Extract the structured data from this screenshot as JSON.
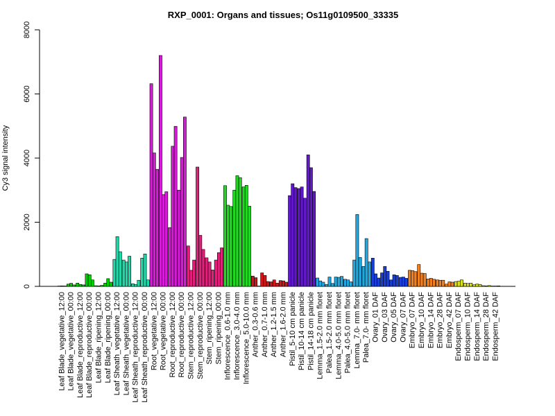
{
  "chart_data": {
    "type": "bar",
    "title": "RXP_0001: Organs and tissues; Os11g0109500_33335",
    "xlabel": "",
    "ylabel": "Cy3 signal intensity",
    "ylim": [
      0,
      8000
    ],
    "yticks": [
      0,
      2000,
      4000,
      6000,
      8000
    ],
    "groups": [
      {
        "label": "Leaf Blade_vegetative_12:00",
        "color": "#228B22",
        "values": [
          10,
          15,
          12
        ]
      },
      {
        "label": "Leaf Blade_vegetative_00:00",
        "color": "#00D000",
        "values": [
          70,
          95,
          45
        ]
      },
      {
        "label": "Leaf Blade_reproductive_12:00",
        "color": "#00D000",
        "values": [
          100,
          60,
          45
        ]
      },
      {
        "label": "Leaf Blade_reproductive_00:00",
        "color": "#00D000",
        "values": [
          390,
          360,
          200
        ]
      },
      {
        "label": "Leaf Blade_ripening_12:00",
        "color": "#00D000",
        "values": [
          20,
          15,
          30
        ]
      },
      {
        "label": "Leaf Blade_ripening_00:00",
        "color": "#00D000",
        "values": [
          100,
          240,
          130
        ]
      },
      {
        "label": "Leaf Sheath_vegetative_12:00",
        "color": "#20D8A8",
        "values": [
          840,
          1550,
          1080
        ]
      },
      {
        "label": "Leaf Sheath_vegetative_00:00",
        "color": "#20D8A8",
        "values": [
          820,
          760,
          940
        ]
      },
      {
        "label": "Leaf Sheath_reproductive_12:00",
        "color": "#20D8A8",
        "values": [
          80,
          60,
          190
        ]
      },
      {
        "label": "Leaf Sheath_reproductive_00:00",
        "color": "#20D8A8",
        "values": [
          880,
          1010,
          200
        ]
      },
      {
        "label": "Root_vegetative_12:00",
        "color": "#D81BD8",
        "values": [
          6320,
          4160,
          3650
        ]
      },
      {
        "label": "Root_vegetative_00:00",
        "color": "#D81BD8",
        "values": [
          7200,
          2860,
          2950
        ]
      },
      {
        "label": "Root_reproductive_12:00",
        "color": "#D81BD8",
        "values": [
          1830,
          4370,
          4990
        ]
      },
      {
        "label": "Root_reproductive_00:00",
        "color": "#D81BD8",
        "values": [
          3000,
          4020,
          5280
        ]
      },
      {
        "label": "Stem_reproductive_12:00",
        "color": "#E0207A",
        "values": [
          1260,
          500,
          820
        ]
      },
      {
        "label": "Stem_reproductive_00:00",
        "color": "#E0207A",
        "values": [
          3720,
          1590,
          1150
        ]
      },
      {
        "label": "Stem_ripening_12:00",
        "color": "#E0207A",
        "values": [
          890,
          760,
          510
        ]
      },
      {
        "label": "Stem_ripening_00:00",
        "color": "#E0207A",
        "values": [
          820,
          1050,
          1200
        ]
      },
      {
        "label": "Inflorescence_0.6-1.0 mm",
        "color": "#22D822",
        "values": [
          3140,
          2530,
          2490
        ]
      },
      {
        "label": "Inflorescence_3.0-4.0 mm",
        "color": "#22D822",
        "values": [
          3000,
          3450,
          3390
        ]
      },
      {
        "label": "Inflorescence_5.0-10.0 mm",
        "color": "#22D822",
        "values": [
          3100,
          3150,
          2500
        ]
      },
      {
        "label": "Anther_0.3-0.6 mm",
        "color": "#D01818",
        "values": [
          320,
          270,
          10
        ]
      },
      {
        "label": "Anther_0.7-1.0 mm",
        "color": "#D01818",
        "values": [
          420,
          340,
          150
        ]
      },
      {
        "label": "Anther_1.2-1.5 mm",
        "color": "#D01818",
        "values": [
          140,
          200,
          100
        ]
      },
      {
        "label": "Anther_1.6-2.0 mm",
        "color": "#D01818",
        "values": [
          180,
          170,
          130
        ]
      },
      {
        "label": "Pistil_5-10 cm panicle",
        "color": "#6018C8",
        "values": [
          2830,
          3200,
          3080
        ]
      },
      {
        "label": "Pistil_10-14 cm panicle",
        "color": "#6018C8",
        "values": [
          3050,
          3100,
          2750
        ]
      },
      {
        "label": "Pistil_14-18 cm panicle",
        "color": "#6018C8",
        "values": [
          4100,
          3700,
          2960
        ]
      },
      {
        "label": "Lemma_1.5-2.0 mm floret",
        "color": "#20A8E0",
        "values": [
          260,
          170,
          130
        ]
      },
      {
        "label": "Palea_1.5-2.0 mm floret",
        "color": "#20A8E0",
        "values": [
          60,
          290,
          90
        ]
      },
      {
        "label": "Lemma_4.0-5.0 mm floret",
        "color": "#20A8E0",
        "values": [
          290,
          280,
          310
        ]
      },
      {
        "label": "Palea_4.0-5.0 mm floret",
        "color": "#20A8E0",
        "values": [
          220,
          200,
          140
        ]
      },
      {
        "label": "Lemma_7.0- mm floret",
        "color": "#20A8E0",
        "values": [
          820,
          2240,
          900
        ]
      },
      {
        "label": "Palea_7.0- mm floret",
        "color": "#20A8E0",
        "values": [
          620,
          1490,
          760
        ]
      },
      {
        "label": "Ovary_01 DAF",
        "color": "#1840D8",
        "values": [
          880,
          390,
          260
        ]
      },
      {
        "label": "Ovary_03 DAF",
        "color": "#1840D8",
        "values": [
          420,
          620,
          470
        ]
      },
      {
        "label": "Ovary_05 DAF",
        "color": "#1840D8",
        "values": [
          200,
          360,
          340
        ]
      },
      {
        "label": "Ovary_07 DAF",
        "color": "#1840D8",
        "values": [
          280,
          290,
          250
        ]
      },
      {
        "label": "Embryo_07 DAF",
        "color": "#F08020",
        "values": [
          500,
          490,
          460
        ]
      },
      {
        "label": "Embryo_10 DAF",
        "color": "#F08020",
        "values": [
          680,
          410,
          400
        ]
      },
      {
        "label": "Embryo_14 DAF",
        "color": "#F08020",
        "values": [
          230,
          250,
          220
        ]
      },
      {
        "label": "Embryo_28 DAF",
        "color": "#F08020",
        "values": [
          200,
          190,
          190
        ]
      },
      {
        "label": "Embryo_42 DAF",
        "color": "#F08020",
        "values": [
          70,
          140,
          130
        ]
      },
      {
        "label": "Endosperm_07 DAF",
        "color": "#D8E020",
        "values": [
          150,
          160,
          200
        ]
      },
      {
        "label": "Endosperm_10 DAF",
        "color": "#D8E020",
        "values": [
          100,
          90,
          100
        ]
      },
      {
        "label": "Endosperm_14 DAF",
        "color": "#D8E020",
        "values": [
          50,
          70,
          60
        ]
      },
      {
        "label": "Endosperm_28 DAF",
        "color": "#D8E020",
        "values": [
          20,
          15,
          25
        ]
      },
      {
        "label": "Endosperm_42 DAF",
        "color": "#D8E020",
        "values": [
          10,
          10,
          15
        ]
      }
    ]
  }
}
